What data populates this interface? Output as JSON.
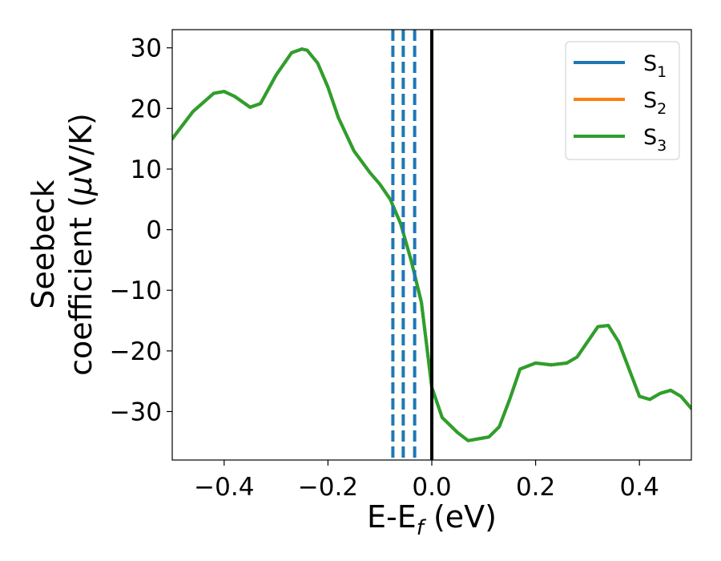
{
  "chart_data": {
    "type": "line",
    "title": "",
    "xlabel": {
      "base": "E-E",
      "sub": "f",
      "suffix": " (eV)"
    },
    "ylabel": {
      "line1": "Seebeck",
      "line2": "coefficient  (",
      "mu": "μ",
      "line2_end": "V/K)"
    },
    "xlim": [
      -0.5,
      0.5
    ],
    "ylim": [
      -38,
      33
    ],
    "xticks": [
      -0.4,
      -0.2,
      0.0,
      0.2,
      0.4
    ],
    "xtick_labels": [
      "−0.4",
      "−0.2",
      "0.0",
      "0.2",
      "0.4"
    ],
    "yticks": [
      -30,
      -20,
      -10,
      0,
      10,
      20,
      30
    ],
    "ytick_labels": [
      "−30",
      "−20",
      "−10",
      "0",
      "10",
      "20",
      "30"
    ],
    "grid": false,
    "legend_position": "top-right",
    "x": [
      -0.5,
      -0.46,
      -0.42,
      -0.4,
      -0.38,
      -0.35,
      -0.33,
      -0.3,
      -0.27,
      -0.25,
      -0.24,
      -0.22,
      -0.2,
      -0.18,
      -0.15,
      -0.12,
      -0.1,
      -0.08,
      -0.06,
      -0.04,
      -0.02,
      0.0,
      0.02,
      0.05,
      0.07,
      0.09,
      0.11,
      0.13,
      0.15,
      0.17,
      0.2,
      0.23,
      0.26,
      0.28,
      0.3,
      0.32,
      0.34,
      0.36,
      0.38,
      0.4,
      0.42,
      0.44,
      0.46,
      0.48,
      0.5
    ],
    "series": [
      {
        "name": "S",
        "sub": "1",
        "color": "#1f77b4",
        "values": [
          15,
          19.5,
          22.5,
          22.8,
          22,
          20.2,
          20.8,
          25.5,
          29.2,
          29.8,
          29.6,
          27.5,
          23.5,
          18.5,
          13,
          9.5,
          7.5,
          5,
          1,
          -5,
          -12,
          -26,
          -31,
          -33.5,
          -34.8,
          -34.5,
          -34.2,
          -32.5,
          -28,
          -23,
          -22,
          -22.3,
          -22,
          -21,
          -18.5,
          -16,
          -15.8,
          -18.5,
          -23,
          -27.5,
          -28,
          -27,
          -26.5,
          -27.5,
          -29.5
        ]
      },
      {
        "name": "S",
        "sub": "2",
        "color": "#ff7f0e",
        "values": [
          15,
          19.5,
          22.5,
          22.8,
          22,
          20.2,
          20.8,
          25.5,
          29.2,
          29.8,
          29.6,
          27.5,
          23.5,
          18.5,
          13,
          9.5,
          7.5,
          5,
          1,
          -5,
          -12,
          -26,
          -31,
          -33.5,
          -34.8,
          -34.5,
          -34.2,
          -32.5,
          -28,
          -23,
          -22,
          -22.3,
          -22,
          -21,
          -18.5,
          -16,
          -15.8,
          -18.5,
          -23,
          -27.5,
          -28,
          -27,
          -26.5,
          -27.5,
          -29.5
        ]
      },
      {
        "name": "S",
        "sub": "3",
        "color": "#2ca02c",
        "values": [
          15,
          19.5,
          22.5,
          22.8,
          22,
          20.2,
          20.8,
          25.5,
          29.2,
          29.8,
          29.6,
          27.5,
          23.5,
          18.5,
          13,
          9.5,
          7.5,
          5,
          1,
          -5,
          -12,
          -26,
          -31,
          -33.5,
          -34.8,
          -34.5,
          -34.2,
          -32.5,
          -28,
          -23,
          -22,
          -22.3,
          -22,
          -21,
          -18.5,
          -16,
          -15.8,
          -18.5,
          -23,
          -27.5,
          -28,
          -27,
          -26.5,
          -27.5,
          -29.5
        ]
      }
    ],
    "vlines": [
      {
        "x": -0.075,
        "style": "dashed",
        "color": "#1f77b4"
      },
      {
        "x": -0.055,
        "style": "dashed",
        "color": "#1f77b4"
      },
      {
        "x": -0.033,
        "style": "dashed",
        "color": "#1f77b4"
      },
      {
        "x": 0.0,
        "style": "solid",
        "color": "#000000"
      }
    ]
  }
}
